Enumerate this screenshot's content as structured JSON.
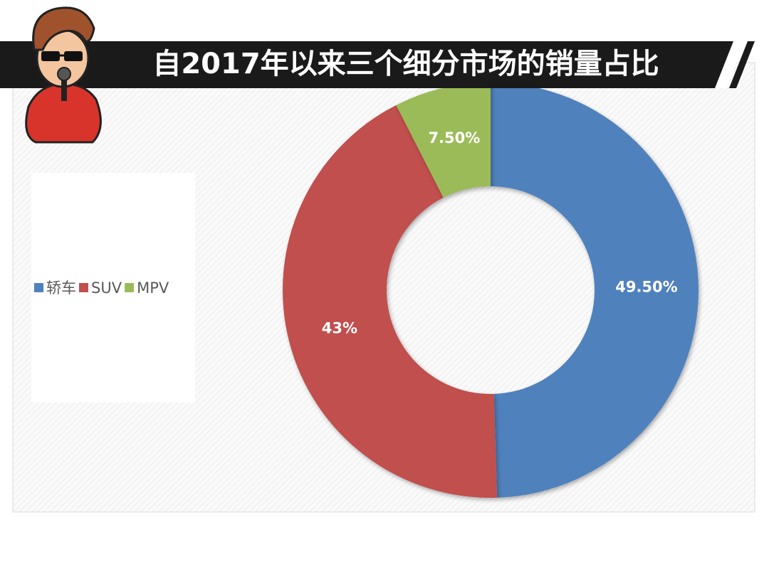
{
  "chart_data": {
    "type": "donut",
    "title": "自2017年以来三个细分市场的销量占比",
    "categories": [
      "轿车",
      "SUV",
      "MPV"
    ],
    "values": [
      49.5,
      43,
      7.5
    ],
    "value_labels": [
      "49.50%",
      "43%",
      "7.50%"
    ],
    "colors": [
      "#4f81bd",
      "#c0504d",
      "#9bbb59"
    ],
    "legend": "left"
  }
}
